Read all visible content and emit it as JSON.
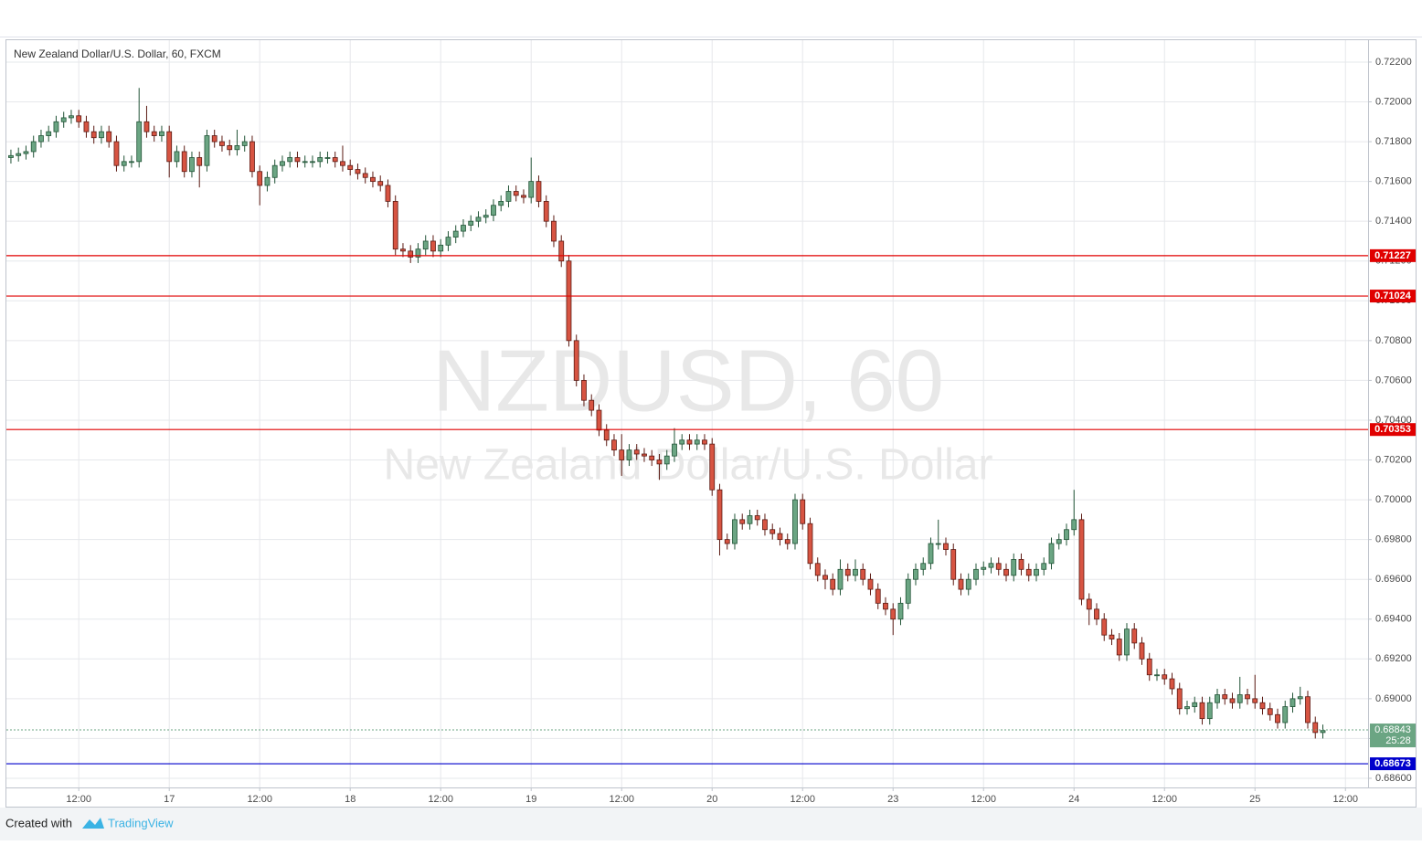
{
  "chart_data": {
    "type": "candlestick",
    "title": "New Zealand Dollar/U.S. Dollar, 60, FXCM",
    "watermark": {
      "symbol": "NZDUSD, 60",
      "name": "New Zealand Dollar/U.S. Dollar"
    },
    "open": [
      0.7172,
      0.7173,
      0.7174,
      0.7175,
      0.718,
      0.7183,
      0.7185,
      0.719,
      0.7192,
      0.7193,
      0.719,
      0.7185,
      0.7182,
      0.7185,
      0.718,
      0.7168,
      0.717,
      0.717,
      0.719,
      0.7185,
      0.7183,
      0.7185,
      0.717,
      0.7175,
      0.7165,
      0.7172,
      0.7168,
      0.7183,
      0.718,
      0.7178,
      0.7176,
      0.7178,
      0.718,
      0.7165,
      0.7158,
      0.7162,
      0.7168,
      0.717,
      0.7172,
      0.717,
      0.717,
      0.717,
      0.7172,
      0.7172,
      0.717,
      0.7168,
      0.7166,
      0.7164,
      0.7162,
      0.716,
      0.7158,
      0.715,
      0.7126,
      0.7125,
      0.7122,
      0.7126,
      0.713,
      0.7125,
      0.7128,
      0.7132,
      0.7135,
      0.7138,
      0.714,
      0.7142,
      0.7143,
      0.7148,
      0.715,
      0.7155,
      0.7153,
      0.7152,
      0.716,
      0.715,
      0.714,
      0.713,
      0.712,
      0.708,
      0.706,
      0.705,
      0.7045,
      0.7035,
      0.703,
      0.7025,
      0.702,
      0.7025,
      0.7023,
      0.7022,
      0.702,
      0.7018,
      0.7022,
      0.7028,
      0.703,
      0.7028,
      0.703,
      0.7028,
      0.7005,
      0.698,
      0.6978,
      0.699,
      0.6988,
      0.6992,
      0.699,
      0.6985,
      0.6983,
      0.698,
      0.6978,
      0.7,
      0.6988,
      0.6968,
      0.6962,
      0.696,
      0.6955,
      0.6965,
      0.6962,
      0.6965,
      0.696,
      0.6955,
      0.6948,
      0.6945,
      0.694,
      0.6948,
      0.696,
      0.6965,
      0.6968,
      0.6978,
      0.6978,
      0.6975,
      0.696,
      0.6955,
      0.696,
      0.6965,
      0.6966,
      0.6968,
      0.6965,
      0.6962,
      0.697,
      0.6965,
      0.6962,
      0.6965,
      0.6968,
      0.6978,
      0.698,
      0.6985,
      0.699,
      0.695,
      0.6945,
      0.694,
      0.6932,
      0.693,
      0.6922,
      0.6935,
      0.6928,
      0.692,
      0.6912,
      0.6912,
      0.691,
      0.6905,
      0.6895,
      0.6896,
      0.6898,
      0.689,
      0.6898,
      0.6902,
      0.69,
      0.6898,
      0.6902,
      0.69,
      0.6898,
      0.6895,
      0.6892,
      0.6888,
      0.6896,
      0.69,
      0.6901,
      0.6888,
      0.6883
    ],
    "high": [
      0.7176,
      0.7177,
      0.7178,
      0.7183,
      0.7186,
      0.7188,
      0.7193,
      0.7195,
      0.7196,
      0.7196,
      0.7193,
      0.7188,
      0.7188,
      0.7188,
      0.7183,
      0.7173,
      0.7173,
      0.7207,
      0.7198,
      0.7188,
      0.7188,
      0.7188,
      0.7178,
      0.7178,
      0.7175,
      0.7175,
      0.7186,
      0.7186,
      0.7183,
      0.7181,
      0.7186,
      0.7183,
      0.7183,
      0.7168,
      0.7165,
      0.7171,
      0.7173,
      0.7175,
      0.7175,
      0.7173,
      0.7173,
      0.7175,
      0.7175,
      0.7175,
      0.7178,
      0.7171,
      0.7169,
      0.7167,
      0.7165,
      0.7163,
      0.7161,
      0.7153,
      0.7129,
      0.7128,
      0.7129,
      0.7133,
      0.7133,
      0.7131,
      0.7135,
      0.7138,
      0.7141,
      0.7143,
      0.7145,
      0.7146,
      0.7151,
      0.7153,
      0.7158,
      0.7158,
      0.7156,
      0.7172,
      0.7163,
      0.7153,
      0.7143,
      0.7133,
      0.7123,
      0.7083,
      0.7063,
      0.7053,
      0.7048,
      0.7038,
      0.7033,
      0.7033,
      0.7028,
      0.7028,
      0.7026,
      0.7025,
      0.7023,
      0.7025,
      0.7036,
      0.7033,
      0.7033,
      0.7033,
      0.7033,
      0.7031,
      0.7008,
      0.6983,
      0.6993,
      0.6993,
      0.6995,
      0.6995,
      0.6993,
      0.6988,
      0.6986,
      0.6983,
      0.7003,
      0.7003,
      0.6991,
      0.6971,
      0.6965,
      0.6963,
      0.697,
      0.6968,
      0.697,
      0.6968,
      0.6963,
      0.6958,
      0.6951,
      0.6948,
      0.6951,
      0.6963,
      0.6968,
      0.6971,
      0.6981,
      0.699,
      0.6981,
      0.6978,
      0.6963,
      0.6963,
      0.6968,
      0.6969,
      0.6971,
      0.6971,
      0.6968,
      0.6973,
      0.6973,
      0.6968,
      0.6968,
      0.6971,
      0.6981,
      0.6983,
      0.6988,
      0.7005,
      0.6993,
      0.6953,
      0.6948,
      0.6943,
      0.6935,
      0.6933,
      0.6938,
      0.6938,
      0.6931,
      0.6923,
      0.6915,
      0.6915,
      0.6913,
      0.6908,
      0.6899,
      0.6901,
      0.6901,
      0.6901,
      0.6905,
      0.6905,
      0.6903,
      0.6911,
      0.6905,
      0.6912,
      0.6901,
      0.6898,
      0.6895,
      0.6899,
      0.6903,
      0.6906,
      0.6904,
      0.6891,
      0.6887
    ],
    "low": [
      0.7169,
      0.717,
      0.7171,
      0.7172,
      0.7177,
      0.718,
      0.7182,
      0.7187,
      0.7189,
      0.7187,
      0.7182,
      0.7179,
      0.7179,
      0.7177,
      0.7165,
      0.7165,
      0.7167,
      0.7167,
      0.7182,
      0.718,
      0.718,
      0.7162,
      0.7167,
      0.7162,
      0.7162,
      0.7157,
      0.7165,
      0.7177,
      0.7175,
      0.7173,
      0.7173,
      0.7175,
      0.7162,
      0.7148,
      0.7155,
      0.7159,
      0.7165,
      0.7167,
      0.7167,
      0.7167,
      0.7167,
      0.7167,
      0.7169,
      0.7167,
      0.7165,
      0.7163,
      0.7161,
      0.7159,
      0.7157,
      0.7155,
      0.7147,
      0.7123,
      0.7122,
      0.7119,
      0.7119,
      0.7123,
      0.7122,
      0.7122,
      0.7125,
      0.7129,
      0.7132,
      0.7135,
      0.7137,
      0.7139,
      0.714,
      0.7145,
      0.7147,
      0.715,
      0.7149,
      0.7149,
      0.7147,
      0.7137,
      0.7127,
      0.7117,
      0.7077,
      0.7057,
      0.7047,
      0.7042,
      0.7032,
      0.7027,
      0.7022,
      0.7012,
      0.7017,
      0.702,
      0.7019,
      0.7017,
      0.701,
      0.7015,
      0.7019,
      0.7025,
      0.7025,
      0.7025,
      0.7025,
      0.7002,
      0.6972,
      0.6975,
      0.6975,
      0.6985,
      0.6985,
      0.6987,
      0.6982,
      0.698,
      0.6977,
      0.6975,
      0.6975,
      0.6985,
      0.6965,
      0.6959,
      0.6955,
      0.6952,
      0.6952,
      0.6959,
      0.6959,
      0.6957,
      0.6952,
      0.6945,
      0.6942,
      0.6932,
      0.6937,
      0.6945,
      0.6957,
      0.6962,
      0.6965,
      0.6975,
      0.6972,
      0.6957,
      0.6952,
      0.6952,
      0.6957,
      0.6962,
      0.6963,
      0.6962,
      0.6959,
      0.6959,
      0.6962,
      0.6959,
      0.6959,
      0.6962,
      0.6965,
      0.6975,
      0.6977,
      0.6982,
      0.6947,
      0.6937,
      0.6937,
      0.6929,
      0.6927,
      0.6919,
      0.6919,
      0.6925,
      0.6917,
      0.6909,
      0.6909,
      0.6907,
      0.6902,
      0.6892,
      0.6892,
      0.6893,
      0.6887,
      0.6887,
      0.6895,
      0.6897,
      0.6895,
      0.6895,
      0.6897,
      0.6895,
      0.6892,
      0.6889,
      0.6885,
      0.6885,
      0.6893,
      0.6897,
      0.6885,
      0.688,
      0.688
    ],
    "close": [
      0.7173,
      0.7174,
      0.7175,
      0.718,
      0.7183,
      0.7185,
      0.719,
      0.7192,
      0.7193,
      0.719,
      0.7185,
      0.7182,
      0.7185,
      0.718,
      0.7168,
      0.717,
      0.717,
      0.719,
      0.7185,
      0.7183,
      0.7185,
      0.717,
      0.7175,
      0.7165,
      0.7172,
      0.7168,
      0.7183,
      0.718,
      0.7178,
      0.7176,
      0.7178,
      0.718,
      0.7165,
      0.7158,
      0.7162,
      0.7168,
      0.717,
      0.7172,
      0.717,
      0.717,
      0.717,
      0.7172,
      0.7172,
      0.717,
      0.7168,
      0.7166,
      0.7164,
      0.7162,
      0.716,
      0.7158,
      0.715,
      0.7126,
      0.7125,
      0.7122,
      0.7126,
      0.713,
      0.7125,
      0.7128,
      0.7132,
      0.7135,
      0.7138,
      0.714,
      0.7142,
      0.7143,
      0.7148,
      0.715,
      0.7155,
      0.7153,
      0.7152,
      0.716,
      0.715,
      0.714,
      0.713,
      0.712,
      0.708,
      0.706,
      0.705,
      0.7045,
      0.7035,
      0.703,
      0.7025,
      0.702,
      0.7025,
      0.7023,
      0.7022,
      0.702,
      0.7018,
      0.7022,
      0.7028,
      0.703,
      0.7028,
      0.703,
      0.7028,
      0.7005,
      0.698,
      0.6978,
      0.699,
      0.6988,
      0.6992,
      0.699,
      0.6985,
      0.6983,
      0.698,
      0.6978,
      0.7,
      0.6988,
      0.6968,
      0.6962,
      0.696,
      0.6955,
      0.6965,
      0.6962,
      0.6965,
      0.696,
      0.6955,
      0.6948,
      0.6945,
      0.694,
      0.6948,
      0.696,
      0.6965,
      0.6968,
      0.6978,
      0.6978,
      0.6975,
      0.696,
      0.6955,
      0.696,
      0.6965,
      0.6966,
      0.6968,
      0.6965,
      0.6962,
      0.697,
      0.6965,
      0.6962,
      0.6965,
      0.6968,
      0.6978,
      0.698,
      0.6985,
      0.699,
      0.695,
      0.6945,
      0.694,
      0.6932,
      0.693,
      0.6922,
      0.6935,
      0.6928,
      0.692,
      0.6912,
      0.6912,
      0.691,
      0.6905,
      0.6895,
      0.6896,
      0.6898,
      0.689,
      0.6898,
      0.6902,
      0.69,
      0.6898,
      0.6902,
      0.69,
      0.6898,
      0.6895,
      0.6892,
      0.6888,
      0.6896,
      0.69,
      0.6901,
      0.6888,
      0.6883,
      0.6884
    ],
    "up_color": "#6ba583",
    "up_border": "#225437",
    "down_color": "#d75442",
    "down_border": "#5b1a13",
    "xlim": [
      -0.6,
      180
    ],
    "xticks": [
      {
        "value": 9,
        "label": "12:00"
      },
      {
        "value": 21,
        "label": "17"
      },
      {
        "value": 33,
        "label": "12:00"
      },
      {
        "value": 45,
        "label": "18"
      },
      {
        "value": 57,
        "label": "12:00"
      },
      {
        "value": 69,
        "label": "19"
      },
      {
        "value": 81,
        "label": "12:00"
      },
      {
        "value": 93,
        "label": "20"
      },
      {
        "value": 105,
        "label": "12:00"
      },
      {
        "value": 117,
        "label": "23"
      },
      {
        "value": 129,
        "label": "12:00"
      },
      {
        "value": 141,
        "label": "24"
      },
      {
        "value": 153,
        "label": "12:00"
      },
      {
        "value": 165,
        "label": "25"
      },
      {
        "value": 177,
        "label": "12:00"
      }
    ],
    "ylim": [
      0.68554,
      0.7231
    ],
    "yticks": [
      {
        "value": 0.722,
        "label": "0.72200"
      },
      {
        "value": 0.72,
        "label": "0.72000"
      },
      {
        "value": 0.718,
        "label": "0.71800"
      },
      {
        "value": 0.716,
        "label": "0.71600"
      },
      {
        "value": 0.714,
        "label": "0.71400"
      },
      {
        "value": 0.712,
        "label": "0.71200"
      },
      {
        "value": 0.71,
        "label": "0.71000"
      },
      {
        "value": 0.708,
        "label": "0.70800"
      },
      {
        "value": 0.706,
        "label": "0.70600"
      },
      {
        "value": 0.704,
        "label": "0.70400"
      },
      {
        "value": 0.702,
        "label": "0.70200"
      },
      {
        "value": 0.7,
        "label": "0.70000"
      },
      {
        "value": 0.698,
        "label": "0.69800"
      },
      {
        "value": 0.696,
        "label": "0.69600"
      },
      {
        "value": 0.694,
        "label": "0.69400"
      },
      {
        "value": 0.692,
        "label": "0.69200"
      },
      {
        "value": 0.69,
        "label": "0.69000"
      },
      {
        "value": 0.688,
        "label": "0.68800"
      },
      {
        "value": 0.686,
        "label": "0.68600"
      }
    ],
    "grid": true,
    "levels": [
      {
        "value": 0.71227,
        "color": "#e00000"
      },
      {
        "value": 0.71024,
        "color": "#e00000"
      },
      {
        "value": 0.70353,
        "color": "#e00000"
      },
      {
        "value": 0.68673,
        "color": "#0000cc"
      }
    ],
    "last_price": {
      "value": 0.68843,
      "countdown": "25:28",
      "color": "#6ba583"
    }
  },
  "footer": {
    "text": "Created with",
    "brand": "TradingView"
  }
}
